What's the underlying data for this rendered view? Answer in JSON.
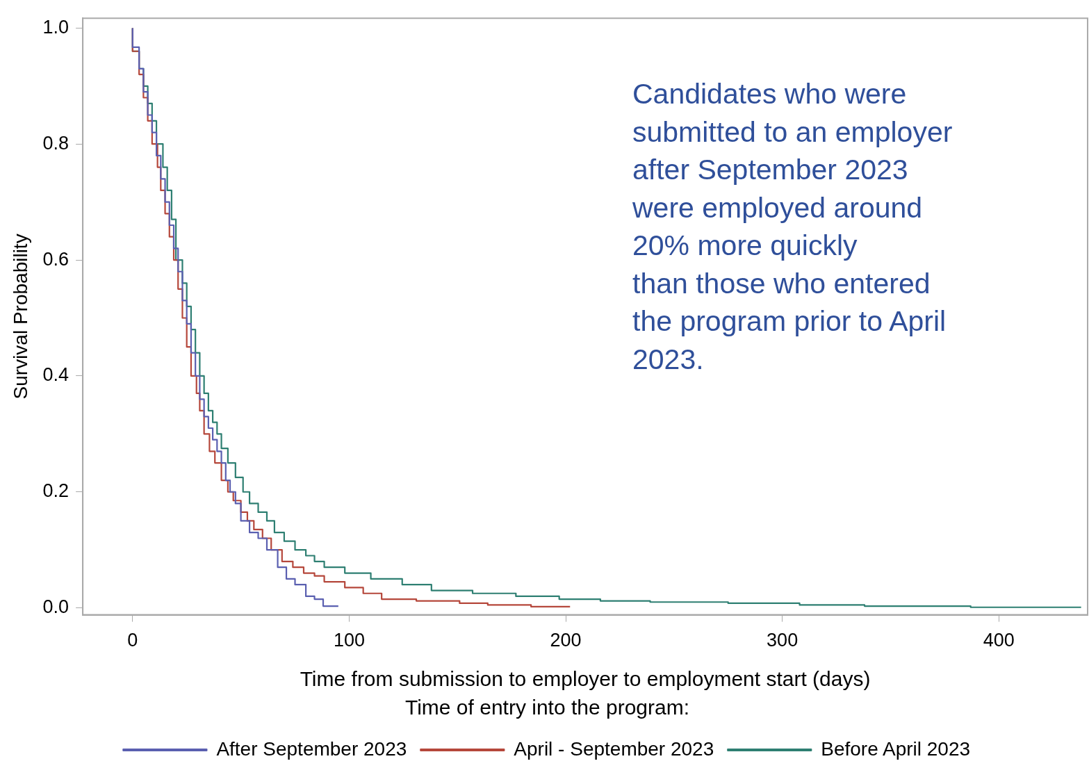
{
  "chart_data": {
    "type": "step",
    "xlabel": "Time from submission to employer to employment start (days)",
    "ylabel": "Survival Probability",
    "legend_title": "Time of entry into the program:",
    "legend": "bottom",
    "grid": false,
    "marker": "none",
    "line_style": "solid",
    "xlim": [
      -23,
      441
    ],
    "xticks": [
      0,
      100,
      200,
      300,
      400
    ],
    "ylim": [
      -0.012,
      1.017
    ],
    "yticks": [
      {
        "value": 0,
        "label": "0.0"
      },
      {
        "value": 0.2,
        "label": "0.2"
      },
      {
        "value": 0.4,
        "label": "0.4"
      },
      {
        "value": 0.6,
        "label": "0.6"
      },
      {
        "value": 0.8,
        "label": "0.8"
      },
      {
        "value": 1,
        "label": "1.0"
      }
    ],
    "annotations": [
      "Candidates who were\nsubmitted to an employer\nafter September 2023\nwere employed around\n20% more quickly\nthan those who entered\nthe program prior to April\n2023."
    ],
    "series": [
      {
        "name": "After September 2023",
        "color": "#5a5fb0",
        "x": [
          0,
          3,
          5,
          7,
          9,
          11,
          13,
          15,
          17,
          19,
          21,
          23,
          25,
          27,
          29,
          31,
          33,
          35,
          37,
          39,
          41,
          43,
          45,
          47.5,
          50,
          54,
          58,
          62,
          67,
          71,
          75,
          80,
          84,
          88,
          95
        ],
        "values": [
          1,
          0.967,
          0.93,
          0.89,
          0.85,
          0.82,
          0.78,
          0.74,
          0.7,
          0.66,
          0.62,
          0.58,
          0.53,
          0.49,
          0.44,
          0.4,
          0.36,
          0.33,
          0.31,
          0.29,
          0.27,
          0.25,
          0.22,
          0.2,
          0.18,
          0.15,
          0.13,
          0.12,
          0.1,
          0.07,
          0.05,
          0.04,
          0.02,
          0.015,
          0.003
        ]
      },
      {
        "name": "April - September 2023",
        "color": "#b5473b",
        "x": [
          0,
          3,
          5,
          7,
          9,
          11.5,
          13,
          15,
          17,
          19,
          21,
          23,
          25,
          27,
          29.5,
          31,
          33,
          35.5,
          38,
          41,
          44,
          46.5,
          50,
          53,
          56,
          60,
          64,
          69,
          74,
          79,
          84,
          88.5,
          98,
          106.5,
          115,
          131,
          151,
          164,
          184,
          202
        ],
        "values": [
          1,
          0.96,
          0.92,
          0.88,
          0.84,
          0.8,
          0.76,
          0.72,
          0.68,
          0.64,
          0.6,
          0.55,
          0.5,
          0.45,
          0.4,
          0.37,
          0.34,
          0.3,
          0.27,
          0.25,
          0.22,
          0.2,
          0.185,
          0.165,
          0.15,
          0.135,
          0.12,
          0.1,
          0.08,
          0.07,
          0.06,
          0.055,
          0.045,
          0.035,
          0.025,
          0.015,
          0.012,
          0.008,
          0.005,
          0.002
        ]
      },
      {
        "name": "Before April 2023",
        "color": "#2e7f72",
        "x": [
          0,
          3,
          5,
          7,
          9,
          11,
          14,
          16,
          18,
          20,
          23,
          25,
          27,
          29,
          31,
          33,
          35,
          37,
          39,
          41,
          44,
          47.5,
          51,
          54,
          58,
          62,
          65.5,
          70,
          75,
          80,
          84,
          88.5,
          98,
          110,
          124.5,
          138,
          157,
          177,
          197,
          216,
          239,
          275,
          308,
          338,
          387,
          438
        ],
        "values": [
          1,
          0.96,
          0.93,
          0.9,
          0.87,
          0.84,
          0.8,
          0.76,
          0.72,
          0.67,
          0.6,
          0.56,
          0.52,
          0.48,
          0.44,
          0.4,
          0.37,
          0.34,
          0.32,
          0.3,
          0.275,
          0.25,
          0.225,
          0.2,
          0.18,
          0.165,
          0.15,
          0.13,
          0.115,
          0.1,
          0.09,
          0.08,
          0.07,
          0.06,
          0.05,
          0.04,
          0.03,
          0.025,
          0.02,
          0.015,
          0.012,
          0.01,
          0.008,
          0.005,
          0.003,
          0.001
        ]
      }
    ]
  }
}
